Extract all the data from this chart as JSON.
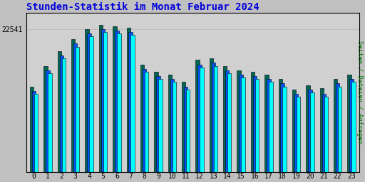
{
  "title": "Stunden-Statistik im Monat Februar 2024",
  "title_color": "#0000dd",
  "title_fontsize": 10,
  "ylabel_right": "Seiten / Dateien / Anfragen",
  "ylabel_right_color": "#007700",
  "ytick_label": "22541",
  "background_color": "#c0c0c0",
  "plot_bg_color": "#d0d0d0",
  "bar_border_color": "#000000",
  "hours": [
    0,
    1,
    2,
    3,
    4,
    5,
    6,
    7,
    8,
    9,
    10,
    11,
    12,
    13,
    14,
    15,
    16,
    17,
    18,
    19,
    20,
    21,
    22,
    23
  ],
  "series": {
    "green": [
      58,
      72,
      82,
      90,
      97,
      100,
      99,
      98,
      73,
      68,
      66,
      61,
      76,
      77,
      72,
      69,
      68,
      66,
      63,
      56,
      59,
      57,
      63,
      66
    ],
    "blue": [
      55,
      69,
      79,
      87,
      94,
      97,
      96,
      95,
      70,
      65,
      63,
      58,
      73,
      74,
      69,
      66,
      65,
      63,
      60,
      53,
      56,
      53,
      60,
      63
    ],
    "cyan": [
      53,
      67,
      77,
      85,
      92,
      95,
      94,
      93,
      68,
      63,
      61,
      56,
      71,
      72,
      67,
      64,
      63,
      61,
      58,
      51,
      54,
      51,
      58,
      61
    ]
  },
  "colors": {
    "green": "#006655",
    "blue": "#0055ff",
    "cyan": "#00ffff"
  },
  "bar_width": 0.28,
  "figsize": [
    5.12,
    2.56
  ],
  "dpi": 100,
  "ylim": [
    0,
    108
  ],
  "ytick_pos": 97,
  "grid_color": "#b8b8b8",
  "grid_linewidth": 0.5,
  "tick_fontsize": 7,
  "font_family": "monospace"
}
